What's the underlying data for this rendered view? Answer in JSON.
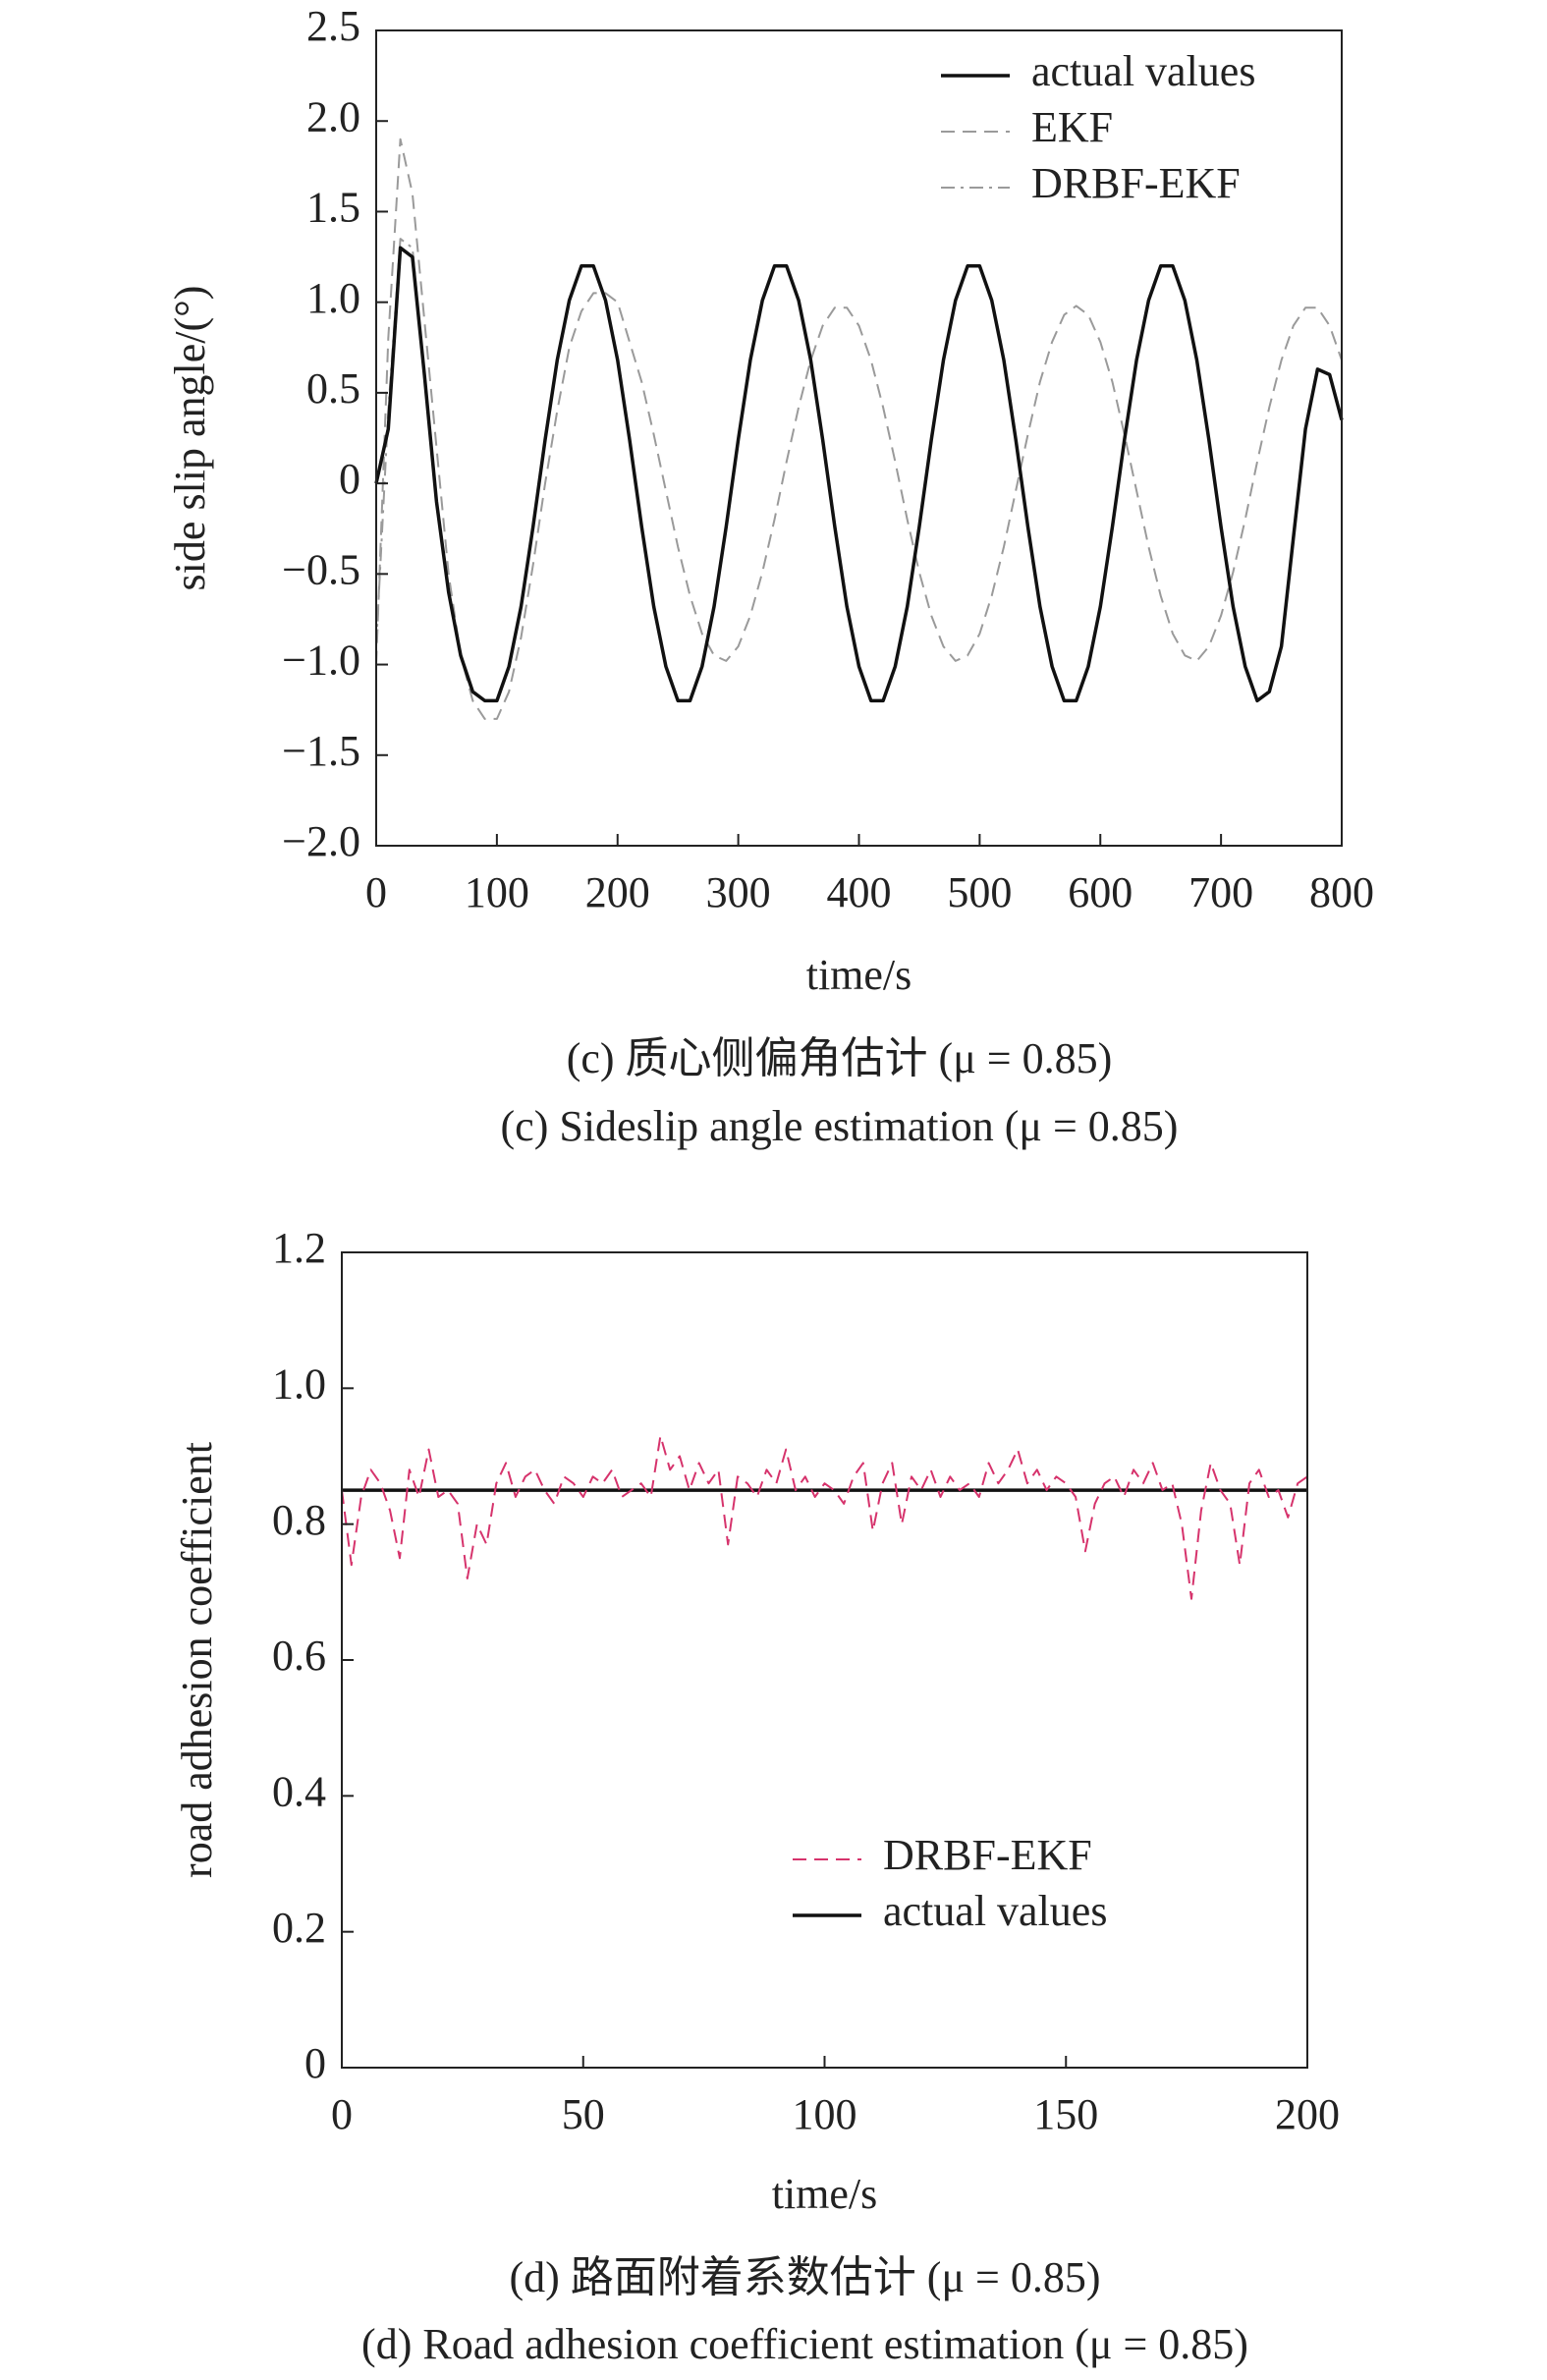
{
  "chart_data": [
    {
      "type": "line",
      "x_label": "time/s",
      "y_label": "side slip angle/(°)",
      "caption_cn": "(c) 质心侧偏角估计 (μ = 0.85)",
      "caption_en": "(c) Sideslip angle estimation (μ = 0.85)",
      "xlim": [
        0,
        800
      ],
      "ylim": [
        -2,
        2.5
      ],
      "xticks": [
        0,
        100,
        200,
        300,
        400,
        500,
        600,
        700,
        800
      ],
      "yticks": [
        {
          "value": -2,
          "label": "−2.0"
        },
        {
          "value": -1.5,
          "label": "−1.5"
        },
        {
          "value": -1,
          "label": "−1.0"
        },
        {
          "value": -0.5,
          "label": "−0.5"
        },
        0,
        0.5,
        {
          "value": 1,
          "label": "1.0"
        },
        1.5,
        {
          "value": 2,
          "label": "2.0"
        },
        2.5
      ],
      "legend": "upper right",
      "x": [
        0,
        10,
        20,
        30,
        40,
        50,
        60,
        70,
        80,
        90,
        100,
        110,
        120,
        130,
        140,
        150,
        160,
        170,
        180,
        190,
        200,
        210,
        220,
        230,
        240,
        250,
        260,
        270,
        280,
        290,
        300,
        310,
        320,
        330,
        340,
        350,
        360,
        370,
        380,
        390,
        400,
        410,
        420,
        430,
        440,
        450,
        460,
        470,
        480,
        490,
        500,
        510,
        520,
        530,
        540,
        550,
        560,
        570,
        580,
        590,
        600,
        610,
        620,
        630,
        640,
        650,
        660,
        670,
        680,
        690,
        700,
        710,
        720,
        730,
        740,
        750,
        760,
        770,
        780,
        790,
        800
      ],
      "series": [
        {
          "name": "actual values",
          "color": "#111111",
          "dash": "solid",
          "values": [
            0,
            0.3,
            1.3,
            1.25,
            0.6,
            -0.1,
            -0.6,
            -0.95,
            -1.15,
            -1.2,
            -1.2,
            -1.01,
            -0.68,
            -0.24,
            0.24,
            0.68,
            1.01,
            1.2,
            1.2,
            1.01,
            0.68,
            0.24,
            -0.24,
            -0.68,
            -1.01,
            -1.2,
            -1.2,
            -1.01,
            -0.68,
            -0.24,
            0.24,
            0.68,
            1.01,
            1.2,
            1.2,
            1.01,
            0.68,
            0.24,
            -0.24,
            -0.68,
            -1.01,
            -1.2,
            -1.2,
            -1.01,
            -0.68,
            -0.24,
            0.24,
            0.68,
            1.01,
            1.2,
            1.2,
            1.01,
            0.68,
            0.24,
            -0.24,
            -0.68,
            -1.01,
            -1.2,
            -1.2,
            -1.01,
            -0.68,
            -0.24,
            0.24,
            0.68,
            1.01,
            1.2,
            1.2,
            1.01,
            0.68,
            0.24,
            -0.24,
            -0.68,
            -1.01,
            -1.2,
            -1.15,
            -0.9,
            -0.3,
            0.3,
            0.63,
            0.6,
            0.35
          ]
        },
        {
          "name": "EKF",
          "color": "#9a9a9a",
          "dash": "dashed",
          "values": [
            -1.0,
            0.8,
            1.9,
            1.6,
            0.9,
            0.2,
            -0.5,
            -0.95,
            -1.2,
            -1.3,
            -1.3,
            -1.15,
            -0.85,
            -0.45,
            0,
            0.4,
            0.75,
            0.95,
            1.05,
            1.05,
            1.0,
            0.78,
            0.56,
            0.27,
            -0.04,
            -0.35,
            -0.62,
            -0.83,
            -0.95,
            -0.98,
            -0.9,
            -0.73,
            -0.49,
            -0.2,
            0.12,
            0.42,
            0.68,
            0.87,
            0.97,
            0.97,
            0.87,
            0.68,
            0.42,
            0.12,
            -0.2,
            -0.49,
            -0.73,
            -0.9,
            -0.98,
            -0.95,
            -0.83,
            -0.62,
            -0.35,
            -0.04,
            0.27,
            0.56,
            0.78,
            0.93,
            0.98,
            0.93,
            0.78,
            0.56,
            0.27,
            -0.04,
            -0.35,
            -0.62,
            -0.83,
            -0.95,
            -0.98,
            -0.9,
            -0.73,
            -0.49,
            -0.2,
            0.12,
            0.42,
            0.68,
            0.87,
            0.97,
            0.97,
            0.87,
            0.68
          ]
        },
        {
          "name": "DRBF-EKF",
          "color": "#9a9a9a",
          "dash": "dashdot",
          "values": [
            -0.9,
            0.4,
            1.35,
            1.3,
            0.6,
            -0.1,
            -0.6,
            -0.95,
            -1.15,
            -1.2,
            -1.2,
            -1.01,
            -0.68,
            -0.24,
            0.24,
            0.68,
            1.01,
            1.2,
            1.2,
            1.01,
            0.68,
            0.24,
            -0.24,
            -0.68,
            -1.01,
            -1.2,
            -1.2,
            -1.01,
            -0.68,
            -0.24,
            0.24,
            0.68,
            1.01,
            1.2,
            1.2,
            1.01,
            0.68,
            0.24,
            -0.24,
            -0.68,
            -1.01,
            -1.2,
            -1.2,
            -1.01,
            -0.68,
            -0.24,
            0.24,
            0.68,
            1.01,
            1.2,
            1.2,
            1.01,
            0.68,
            0.24,
            -0.24,
            -0.68,
            -1.01,
            -1.2,
            -1.2,
            -1.01,
            -0.68,
            -0.24,
            0.24,
            0.68,
            1.01,
            1.2,
            1.2,
            1.01,
            0.68,
            0.24,
            -0.24,
            -0.68,
            -1.01,
            -1.2,
            -1.15,
            -0.9,
            -0.3,
            0.3,
            0.63,
            0.6,
            0.35
          ]
        }
      ]
    },
    {
      "type": "line",
      "x_label": "time/s",
      "y_label": "road adhesion coefficient",
      "caption_cn": "(d) 路面附着系数估计 (μ = 0.85)",
      "caption_en": "(d) Road adhesion coefficient estimation (μ = 0.85)",
      "xlim": [
        0,
        200
      ],
      "ylim": [
        0,
        1.2
      ],
      "xticks": [
        0,
        50,
        100,
        150,
        200
      ],
      "yticks": [
        0,
        0.2,
        0.4,
        0.6,
        0.8,
        {
          "value": 1,
          "label": "1.0"
        },
        1.2
      ],
      "legend": "lower right",
      "x": [
        0,
        2,
        4,
        6,
        8,
        10,
        12,
        14,
        16,
        18,
        20,
        22,
        24,
        26,
        28,
        30,
        32,
        34,
        36,
        38,
        40,
        42,
        44,
        46,
        48,
        50,
        52,
        54,
        56,
        58,
        60,
        62,
        64,
        66,
        68,
        70,
        72,
        74,
        76,
        78,
        80,
        82,
        84,
        86,
        88,
        90,
        92,
        94,
        96,
        98,
        100,
        102,
        104,
        106,
        108,
        110,
        112,
        114,
        116,
        118,
        120,
        122,
        124,
        126,
        128,
        130,
        132,
        134,
        136,
        138,
        140,
        142,
        144,
        146,
        148,
        150,
        152,
        154,
        156,
        158,
        160,
        162,
        164,
        166,
        168,
        170,
        172,
        174,
        176,
        178,
        180,
        182,
        184,
        186,
        188,
        190,
        192,
        194,
        196,
        198,
        200
      ],
      "series": [
        {
          "name": "DRBF-EKF",
          "color": "#d6336c",
          "dash": "dashed",
          "values": [
            0.85,
            0.74,
            0.84,
            0.88,
            0.86,
            0.82,
            0.75,
            0.88,
            0.84,
            0.91,
            0.84,
            0.85,
            0.83,
            0.72,
            0.8,
            0.77,
            0.86,
            0.89,
            0.84,
            0.87,
            0.88,
            0.85,
            0.83,
            0.87,
            0.86,
            0.84,
            0.87,
            0.86,
            0.88,
            0.84,
            0.85,
            0.86,
            0.84,
            0.93,
            0.88,
            0.9,
            0.85,
            0.89,
            0.86,
            0.88,
            0.77,
            0.87,
            0.86,
            0.84,
            0.88,
            0.86,
            0.91,
            0.85,
            0.87,
            0.84,
            0.86,
            0.85,
            0.83,
            0.87,
            0.89,
            0.79,
            0.86,
            0.89,
            0.8,
            0.87,
            0.85,
            0.88,
            0.84,
            0.87,
            0.85,
            0.86,
            0.84,
            0.89,
            0.86,
            0.88,
            0.91,
            0.86,
            0.88,
            0.85,
            0.87,
            0.86,
            0.84,
            0.76,
            0.83,
            0.86,
            0.87,
            0.84,
            0.88,
            0.86,
            0.89,
            0.85,
            0.86,
            0.8,
            0.69,
            0.82,
            0.89,
            0.85,
            0.83,
            0.74,
            0.86,
            0.88,
            0.84,
            0.85,
            0.81,
            0.86,
            0.87
          ]
        },
        {
          "name": "actual values",
          "color": "#111111",
          "dash": "solid",
          "x": [
            0,
            200
          ],
          "values": [
            0.85,
            0.85
          ]
        }
      ]
    }
  ]
}
